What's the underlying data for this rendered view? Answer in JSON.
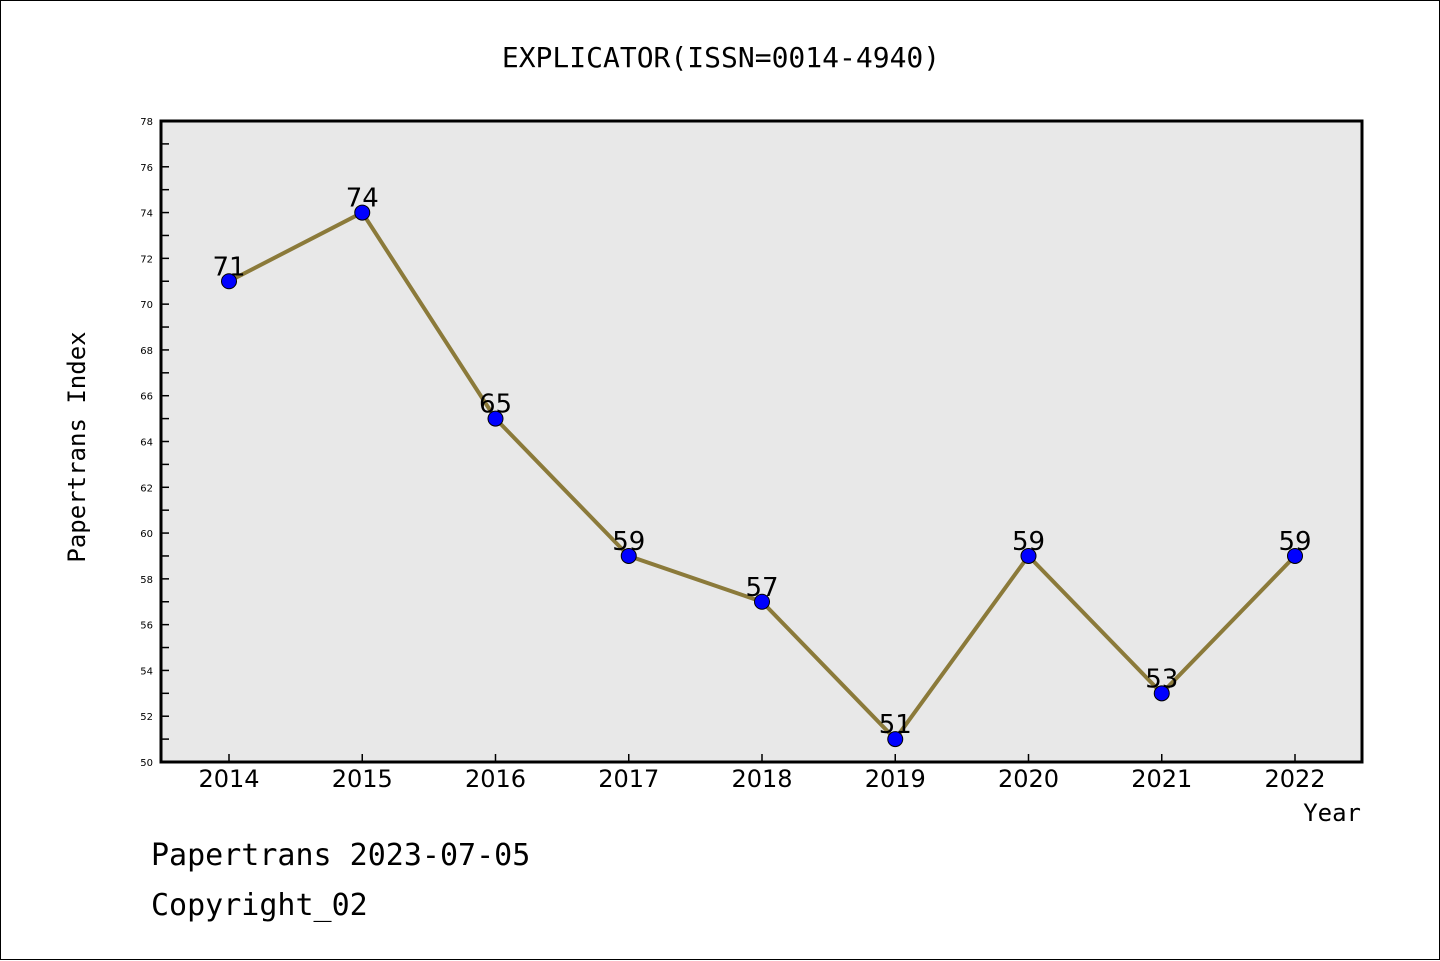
{
  "chart_data": {
    "type": "line",
    "title": "EXPLICATOR(ISSN=0014-4940)",
    "xlabel": "Year",
    "ylabel": "Papertrans Index",
    "x": [
      "2014",
      "2015",
      "2016",
      "2017",
      "2018",
      "2019",
      "2020",
      "2021",
      "2022"
    ],
    "series": [
      {
        "values": [
          71,
          74,
          65,
          59,
          57,
          51,
          59,
          53,
          59
        ]
      }
    ],
    "ylim": [
      50,
      78
    ],
    "yticks": [
      "50",
      "52",
      "54",
      "56",
      "58",
      "60",
      "62",
      "64",
      "66",
      "68",
      "70",
      "72",
      "74",
      "76",
      "78"
    ],
    "grid": false,
    "line_color": "#8b7a3a",
    "marker_color": "#0000ff",
    "plot_background": "#e8e8e8"
  },
  "footer": {
    "line1": "Papertrans 2023-07-05",
    "line2": "Copyright_02"
  }
}
